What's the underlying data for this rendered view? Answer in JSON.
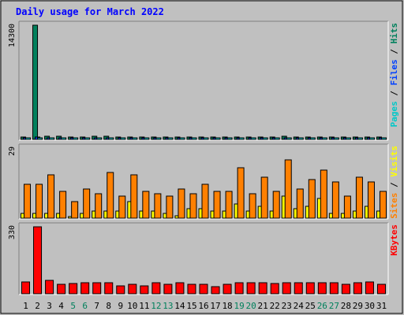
{
  "chart_data": {
    "type": "bar",
    "title": "Daily usage for March 2022",
    "categories": [
      "1",
      "2",
      "3",
      "4",
      "5",
      "6",
      "7",
      "8",
      "9",
      "10",
      "11",
      "12",
      "13",
      "14",
      "15",
      "16",
      "17",
      "18",
      "19",
      "20",
      "21",
      "22",
      "23",
      "24",
      "25",
      "26",
      "27",
      "28",
      "29",
      "30",
      "31"
    ],
    "weekend_days": [
      "5",
      "6",
      "12",
      "13",
      "19",
      "20",
      "26",
      "27"
    ],
    "colors": {
      "background": "#c0c0c0",
      "frame": "#ffffff",
      "title": "#0000ff",
      "hits": "#00805c",
      "files": "#0040ff",
      "pages": "#00c8c8",
      "sites": "#ff8000",
      "visits": "#ffff00",
      "kbytes": "#ff0000",
      "weekday_label": "#000000",
      "weekend_label": "#00805c"
    },
    "panels": [
      {
        "name": "hits-files-pages",
        "ymax_label": "14300",
        "ylim": [
          0,
          14300
        ],
        "legend_parts": [
          {
            "text": "Pages",
            "key": "pages"
          },
          {
            "text": " / ",
            "key": "sep"
          },
          {
            "text": "Files",
            "key": "files"
          },
          {
            "text": " / ",
            "key": "sep"
          },
          {
            "text": "Hits",
            "key": "hits"
          }
        ],
        "series": [
          {
            "name": "Hits",
            "key": "hits",
            "values": [
              300,
              14300,
              400,
              350,
              330,
              340,
              350,
              420,
              320,
              330,
              310,
              330,
              300,
              320,
              330,
              340,
              320,
              330,
              340,
              330,
              340,
              330,
              350,
              340,
              330,
              340,
              330,
              340,
              330,
              340,
              330
            ]
          },
          {
            "name": "Files",
            "key": "files",
            "values": [
              150,
              250,
              180,
              170,
              160,
              160,
              170,
              200,
              150,
              160,
              150,
              160,
              150,
              150,
              160,
              160,
              150,
              160,
              160,
              160,
              160,
              160,
              170,
              160,
              160,
              160,
              160,
              160,
              160,
              160,
              160
            ]
          },
          {
            "name": "Pages",
            "key": "pages",
            "values": [
              60,
              90,
              70,
              60,
              60,
              60,
              60,
              70,
              60,
              60,
              60,
              60,
              60,
              60,
              60,
              60,
              60,
              60,
              60,
              60,
              60,
              60,
              60,
              60,
              60,
              60,
              60,
              60,
              60,
              60,
              60
            ]
          }
        ]
      },
      {
        "name": "visits-sites",
        "ymax_label": "29",
        "ylim": [
          0,
          29
        ],
        "legend_parts": [
          {
            "text": "Sites",
            "key": "sites"
          },
          {
            "text": " / ",
            "key": "sep"
          },
          {
            "text": "Visits",
            "key": "visits"
          }
        ],
        "series": [
          {
            "name": "Visits",
            "key": "visits",
            "values": [
              2,
              2,
              2,
              2,
              0,
              2,
              3,
              3,
              3,
              7,
              3,
              3,
              2,
              1,
              4,
              4,
              3,
              3,
              6,
              3,
              5,
              3,
              9,
              4,
              5,
              8,
              2,
              2,
              3,
              5,
              3
            ]
          },
          {
            "name": "Sites",
            "key": "sites",
            "values": [
              14,
              14,
              18,
              11,
              7,
              12,
              10,
              19,
              9,
              18,
              11,
              10,
              9,
              12,
              10,
              14,
              11,
              11,
              21,
              10,
              17,
              11,
              24,
              12,
              16,
              20,
              15,
              9,
              17,
              15,
              11
            ]
          }
        ]
      },
      {
        "name": "kbytes",
        "ymax_label": "330",
        "ylim": [
          0,
          330
        ],
        "legend_parts": [
          {
            "text": "KBytes",
            "key": "kbytes"
          }
        ],
        "series": [
          {
            "name": "KBytes",
            "key": "kbytes",
            "values": [
              60,
              330,
              65,
              45,
              50,
              55,
              55,
              55,
              40,
              45,
              40,
              55,
              45,
              55,
              45,
              45,
              35,
              45,
              55,
              55,
              55,
              50,
              55,
              55,
              55,
              55,
              55,
              45,
              55,
              60,
              45
            ]
          }
        ]
      }
    ]
  }
}
